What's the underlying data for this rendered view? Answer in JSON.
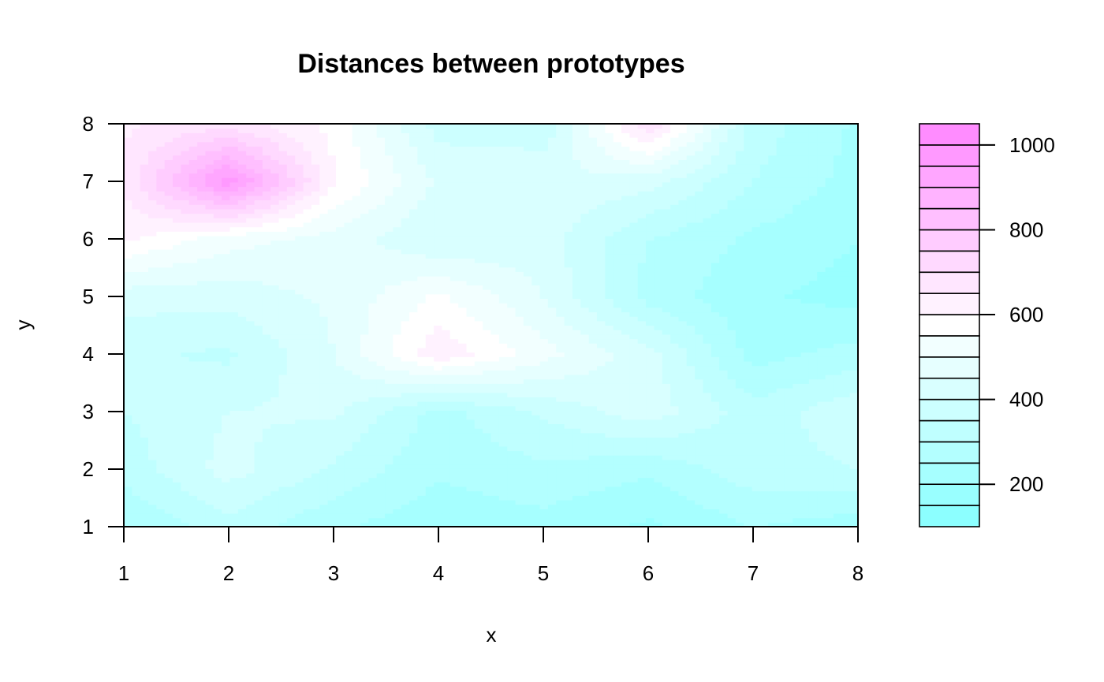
{
  "chart_data": {
    "type": "heatmap",
    "style": "filled-contour",
    "title": "Distances between prototypes",
    "xlabel": "x",
    "ylabel": "y",
    "xlim": [
      1,
      8
    ],
    "ylim": [
      1,
      8
    ],
    "x": [
      1,
      2,
      3,
      4,
      5,
      6,
      7,
      8
    ],
    "y": [
      1,
      2,
      3,
      4,
      5,
      6,
      7,
      8
    ],
    "x_ticks": [
      "1",
      "2",
      "3",
      "4",
      "5",
      "6",
      "7",
      "8"
    ],
    "y_ticks": [
      "1",
      "2",
      "3",
      "4",
      "5",
      "6",
      "7",
      "8"
    ],
    "z_rows_by_y": [
      [
        250,
        330,
        260,
        210,
        230,
        190,
        250,
        220
      ],
      [
        320,
        420,
        340,
        260,
        290,
        260,
        330,
        350
      ],
      [
        350,
        400,
        410,
        280,
        360,
        430,
        320,
        390
      ],
      [
        360,
        340,
        450,
        640,
        520,
        420,
        230,
        270
      ],
      [
        420,
        420,
        460,
        560,
        450,
        280,
        210,
        180
      ],
      [
        610,
        520,
        480,
        400,
        420,
        300,
        240,
        200
      ],
      [
        660,
        990,
        610,
        440,
        450,
        420,
        300,
        230
      ],
      [
        640,
        680,
        580,
        380,
        360,
        700,
        330,
        240
      ]
    ],
    "levels": [
      100,
      150,
      200,
      250,
      300,
      350,
      400,
      450,
      500,
      550,
      600,
      650,
      700,
      750,
      800,
      850,
      900,
      950,
      1000,
      1050
    ],
    "level_colors": [
      "#80FFFF",
      "#8CFFFF",
      "#99FFFF",
      "#A6FFFF",
      "#B3FFFF",
      "#BFFFFF",
      "#CCFFFF",
      "#D9FFFF",
      "#E6FFFF",
      "#F2FFFF",
      "#FFFFFF",
      "#FFF2FF",
      "#FFE6FF",
      "#FFD9FF",
      "#FFCCFF",
      "#FFBFFF",
      "#FFB3FF",
      "#FFA6FF",
      "#FF99FF",
      "#FF8CFF",
      "#FF80FF"
    ],
    "legend": {
      "placement": "right",
      "tick_values": [
        200,
        400,
        600,
        800,
        1000
      ],
      "tick_labels": [
        "200",
        "400",
        "600",
        "800",
        "1000"
      ]
    }
  }
}
